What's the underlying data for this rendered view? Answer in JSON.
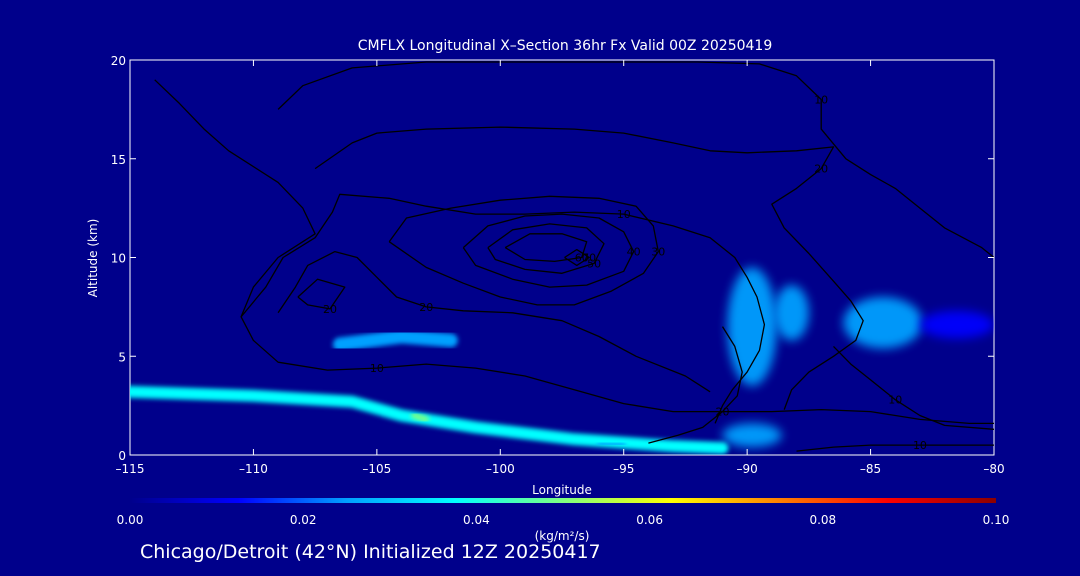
{
  "chart_data": {
    "type": "heatmap",
    "title": "CMFLX Longitudinal X–Section 36hr  Fx Valid 00Z 20250419",
    "xlabel": "Longitude",
    "ylabel": "Altitude (km)",
    "xlim": [
      -115,
      -80
    ],
    "ylim": [
      0,
      20
    ],
    "x_ticks": [
      -115,
      -110,
      -105,
      -100,
      -95,
      -90,
      -85,
      -80
    ],
    "x_tick_labels": [
      "–115",
      "–110",
      "–105",
      "–100",
      "–95",
      "–90",
      "–85",
      "–80"
    ],
    "y_ticks": [
      0,
      5,
      10,
      15,
      20
    ],
    "y_tick_labels": [
      "0",
      "5",
      "10",
      "15",
      "20"
    ],
    "colorbar": {
      "label": "(kg/m²/s)",
      "range": [
        0,
        0.1
      ],
      "ticks": [
        0,
        0.02,
        0.04,
        0.06,
        0.08,
        0.1
      ],
      "tick_labels": [
        "0.00",
        "0.02",
        "0.04",
        "0.06",
        "0.08",
        "0.10"
      ],
      "colors": [
        "#00008b",
        "#0000ff",
        "#00a0ff",
        "#00ffff",
        "#80ff80",
        "#ffff00",
        "#ff8000",
        "#ff0000",
        "#8b0000"
      ]
    },
    "flux_regions": [
      {
        "points": [
          [
            -115,
            3.2
          ],
          [
            -110,
            3.0
          ],
          [
            -106,
            2.7
          ],
          [
            -104,
            2.0
          ],
          [
            -101,
            1.4
          ],
          [
            -97,
            0.8
          ],
          [
            -93,
            0.45
          ],
          [
            -91,
            0.35
          ]
        ],
        "width": 0.6,
        "value": 0.035
      },
      {
        "points": [
          [
            -106.5,
            5.6
          ],
          [
            -104,
            6.0
          ],
          [
            -102,
            5.8
          ]
        ],
        "width": 0.7,
        "value": 0.022
      },
      {
        "points": [
          [
            -103.5,
            2.0
          ],
          [
            -103,
            1.8
          ]
        ],
        "width": 0.3,
        "value": 0.05
      },
      {
        "points": [
          [
            -107.5,
            2.7
          ],
          [
            -106.5,
            2.7
          ]
        ],
        "width": 0.2,
        "value": 0.045
      },
      {
        "points": [
          [
            -96,
            0.6
          ],
          [
            -95,
            0.55
          ]
        ],
        "width": 0.2,
        "value": 0.03
      },
      {
        "points": [
          [
            -91,
            0.7
          ],
          [
            -90,
            0.7
          ]
        ],
        "width": 0.4,
        "value": 0.04
      }
    ],
    "flux_blobs": [
      {
        "x": -89.8,
        "y": 6.5,
        "rx": 1.0,
        "ry": 3.0,
        "value": 0.025
      },
      {
        "x": -88.2,
        "y": 7.2,
        "rx": 0.7,
        "ry": 1.4,
        "value": 0.03
      },
      {
        "x": -84.5,
        "y": 6.7,
        "rx": 1.6,
        "ry": 1.3,
        "value": 0.022
      },
      {
        "x": -81.5,
        "y": 6.6,
        "rx": 1.5,
        "ry": 0.7,
        "value": 0.018
      },
      {
        "x": -89.8,
        "y": 1.0,
        "rx": 1.2,
        "ry": 0.6,
        "value": 0.03
      }
    ],
    "contours": [
      {
        "label": "10",
        "points": [
          [
            -114,
            19.0
          ],
          [
            -113,
            17.8
          ],
          [
            -112,
            16.5
          ],
          [
            -111,
            15.4
          ],
          [
            -109,
            13.8
          ],
          [
            -108,
            12.5
          ],
          [
            -107.5,
            11.2
          ],
          [
            -109,
            10.0
          ],
          [
            -110,
            8.5
          ],
          [
            -110.5,
            7.0
          ],
          [
            -110,
            5.8
          ],
          [
            -109,
            4.7
          ],
          [
            -107,
            4.3
          ],
          [
            -105,
            4.4
          ],
          [
            -103,
            4.6
          ],
          [
            -101,
            4.4
          ],
          [
            -99,
            4.0
          ],
          [
            -97,
            3.3
          ],
          [
            -95,
            2.6
          ],
          [
            -93,
            2.2
          ],
          [
            -91,
            2.2
          ],
          [
            -89,
            2.2
          ],
          [
            -87,
            2.3
          ],
          [
            -85,
            2.2
          ],
          [
            -83,
            1.8
          ],
          [
            -81,
            1.6
          ],
          [
            -80,
            1.6
          ]
        ]
      },
      {
        "label": "10",
        "points": [
          [
            -109,
            17.5
          ],
          [
            -108,
            18.7
          ],
          [
            -106,
            19.6
          ],
          [
            -103,
            19.9
          ],
          [
            -100,
            19.9
          ],
          [
            -96,
            19.9
          ],
          [
            -92,
            19.9
          ],
          [
            -89.5,
            19.8
          ],
          [
            -88,
            19.2
          ],
          [
            -87,
            18.0
          ],
          [
            -87,
            16.5
          ],
          [
            -86,
            15.0
          ],
          [
            -85,
            14.2
          ],
          [
            -84,
            13.5
          ],
          [
            -83,
            12.5
          ],
          [
            -82,
            11.5
          ],
          [
            -80.5,
            10.5
          ],
          [
            -80,
            10.0
          ]
        ]
      },
      {
        "label": "20",
        "points": [
          [
            -107.5,
            14.5
          ],
          [
            -106,
            15.8
          ],
          [
            -105,
            16.3
          ],
          [
            -103,
            16.5
          ],
          [
            -100,
            16.6
          ],
          [
            -97,
            16.5
          ],
          [
            -95,
            16.3
          ],
          [
            -93,
            15.8
          ],
          [
            -91.5,
            15.4
          ],
          [
            -90,
            15.3
          ],
          [
            -88,
            15.4
          ],
          [
            -86.5,
            15.6
          ],
          [
            -87,
            14.5
          ],
          [
            -88,
            13.5
          ],
          [
            -89,
            12.7
          ],
          [
            -88.5,
            11.5
          ],
          [
            -87.5,
            10.2
          ],
          [
            -86.5,
            8.8
          ],
          [
            -85.8,
            7.8
          ],
          [
            -85.3,
            6.8
          ],
          [
            -85.6,
            5.8
          ],
          [
            -86.5,
            5.0
          ],
          [
            -87.5,
            4.2
          ],
          [
            -88.2,
            3.3
          ],
          [
            -88.5,
            2.3
          ]
        ]
      },
      {
        "label": "10",
        "points": [
          [
            -110.5,
            7.0
          ],
          [
            -109.5,
            8.5
          ],
          [
            -108.8,
            10.0
          ],
          [
            -107.5,
            11.0
          ],
          [
            -106.8,
            12.3
          ],
          [
            -106.5,
            13.2
          ],
          [
            -104.5,
            13.0
          ],
          [
            -103,
            12.6
          ],
          [
            -101,
            12.2
          ],
          [
            -99,
            12.2
          ],
          [
            -97,
            12.3
          ],
          [
            -95,
            12.2
          ],
          [
            -93,
            11.6
          ],
          [
            -91.5,
            11.0
          ],
          [
            -90.5,
            10.0
          ],
          [
            -90,
            9.0
          ],
          [
            -89.6,
            8.0
          ],
          [
            -89.3,
            6.6
          ],
          [
            -89.5,
            5.3
          ],
          [
            -90,
            4.2
          ],
          [
            -90.6,
            3.3
          ],
          [
            -91,
            2.5
          ],
          [
            -91.3,
            1.6
          ]
        ]
      },
      {
        "label": "20",
        "points": [
          [
            -109,
            7.2
          ],
          [
            -108.3,
            8.5
          ],
          [
            -107.8,
            9.6
          ],
          [
            -106.7,
            10.3
          ],
          [
            -105.8,
            10.0
          ],
          [
            -105,
            9.0
          ],
          [
            -104.2,
            8.0
          ],
          [
            -103,
            7.5
          ],
          [
            -101.5,
            7.3
          ],
          [
            -99.5,
            7.2
          ],
          [
            -97.5,
            6.8
          ],
          [
            -96,
            6.0
          ],
          [
            -94.5,
            5.0
          ],
          [
            -92.5,
            4.0
          ],
          [
            -91.5,
            3.2
          ]
        ]
      },
      {
        "label": "30",
        "points": [
          [
            -104.5,
            10.8
          ],
          [
            -103.8,
            12.0
          ],
          [
            -102,
            12.5
          ],
          [
            -100,
            12.9
          ],
          [
            -98,
            13.1
          ],
          [
            -96,
            13.0
          ],
          [
            -94.5,
            12.6
          ],
          [
            -93.8,
            11.6
          ],
          [
            -93.6,
            10.3
          ],
          [
            -94.2,
            9.2
          ],
          [
            -95.5,
            8.3
          ],
          [
            -97,
            7.6
          ],
          [
            -98.5,
            7.6
          ],
          [
            -100,
            8.0
          ],
          [
            -101.5,
            8.7
          ],
          [
            -103,
            9.5
          ],
          [
            -104.5,
            10.8
          ]
        ]
      },
      {
        "label": "40",
        "points": [
          [
            -101.5,
            10.5
          ],
          [
            -100.5,
            11.6
          ],
          [
            -99,
            12.1
          ],
          [
            -97.5,
            12.2
          ],
          [
            -96,
            12.0
          ],
          [
            -95,
            11.3
          ],
          [
            -94.6,
            10.3
          ],
          [
            -95,
            9.3
          ],
          [
            -96.5,
            8.6
          ],
          [
            -98,
            8.5
          ],
          [
            -99.5,
            8.9
          ],
          [
            -101,
            9.6
          ],
          [
            -101.5,
            10.5
          ]
        ]
      },
      {
        "label": "50",
        "points": [
          [
            -100.5,
            10.5
          ],
          [
            -99.5,
            11.4
          ],
          [
            -98,
            11.7
          ],
          [
            -96.5,
            11.5
          ],
          [
            -95.8,
            10.7
          ],
          [
            -96.2,
            9.7
          ],
          [
            -97.5,
            9.2
          ],
          [
            -99,
            9.4
          ],
          [
            -100.2,
            9.9
          ],
          [
            -100.5,
            10.5
          ]
        ]
      },
      {
        "label": "60",
        "points": [
          [
            -99.8,
            10.5
          ],
          [
            -98.8,
            11.2
          ],
          [
            -97.5,
            11.2
          ],
          [
            -96.5,
            10.8
          ],
          [
            -96.7,
            10.0
          ],
          [
            -97.8,
            9.8
          ],
          [
            -99,
            9.9
          ],
          [
            -99.8,
            10.5
          ]
        ]
      },
      {
        "label": "70",
        "points": [
          [
            -97.4,
            10.0
          ],
          [
            -96.9,
            10.4
          ],
          [
            -96.4,
            10.0
          ],
          [
            -96.9,
            9.6
          ],
          [
            -97.4,
            10.0
          ]
        ]
      },
      {
        "label": "20",
        "points": [
          [
            -108.2,
            8.0
          ],
          [
            -107.4,
            8.9
          ],
          [
            -106.3,
            8.5
          ],
          [
            -106.9,
            7.4
          ],
          [
            -107.8,
            7.6
          ],
          [
            -108.2,
            8.0
          ]
        ]
      },
      {
        "label": "10",
        "points": [
          [
            -86.5,
            5.5
          ],
          [
            -85.8,
            4.6
          ],
          [
            -85,
            3.8
          ],
          [
            -84,
            2.8
          ],
          [
            -83,
            2.0
          ],
          [
            -82,
            1.5
          ],
          [
            -80,
            1.3
          ]
        ]
      },
      {
        "label": "20",
        "points": [
          [
            -91,
            6.5
          ],
          [
            -90.5,
            5.5
          ],
          [
            -90.2,
            4.2
          ],
          [
            -90.4,
            3.0
          ],
          [
            -91,
            2.2
          ],
          [
            -91.8,
            1.4
          ],
          [
            -92.8,
            1.0
          ],
          [
            -94,
            0.6
          ]
        ]
      },
      {
        "label": "10",
        "points": [
          [
            -88,
            0.2
          ],
          [
            -86.5,
            0.4
          ],
          [
            -85,
            0.5
          ],
          [
            -83,
            0.5
          ],
          [
            -81,
            0.5
          ],
          [
            -80,
            0.5
          ]
        ]
      }
    ]
  },
  "footer": {
    "text": "Chicago/Detroit (42°N) Initialized 12Z 20250417"
  }
}
